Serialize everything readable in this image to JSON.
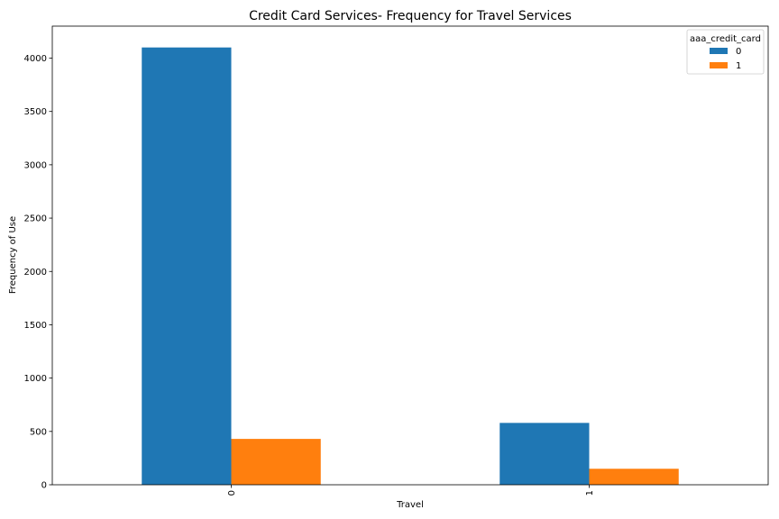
{
  "chart_data": {
    "type": "bar",
    "title": "Credit Card Services- Frequency for Travel Services",
    "xlabel": "Travel",
    "ylabel": "Frequency of Use",
    "categories": [
      "0",
      "1"
    ],
    "series": [
      {
        "name": "0",
        "values": [
          4100,
          580
        ],
        "color": "#1f77b4"
      },
      {
        "name": "1",
        "values": [
          430,
          150
        ],
        "color": "#ff7f0e"
      }
    ],
    "ylim": [
      0,
      4300
    ],
    "yticks": [
      0,
      500,
      1000,
      1500,
      2000,
      2500,
      3000,
      3500,
      4000
    ],
    "grid": false,
    "legend": {
      "title": "aaa_credit_card",
      "position": "top-right"
    }
  }
}
